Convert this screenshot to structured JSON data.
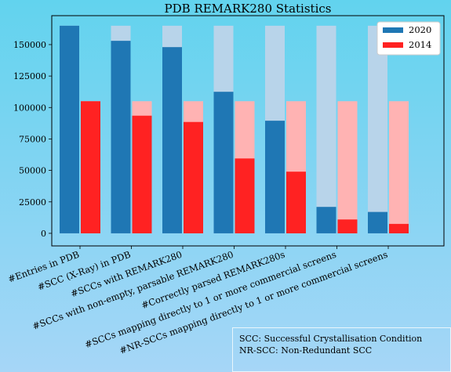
{
  "chart_data": {
    "type": "bar",
    "title": "PDB REMARK280 Statistics",
    "categories": [
      "#Entries in PDB",
      "#SCC (X-Ray) in PDB",
      "#SCCs with REMARK280",
      "#SCCs with non-empty, parsable REMARK280",
      "#Correctly parsed REMARK280s",
      "#SCCs mapping directly to 1 or more commercial screens",
      "#NR-SCCs mapping directly to 1 or more commercial screens"
    ],
    "series": [
      {
        "name": "2020",
        "color": "#1f77b4",
        "background_color": "#b8d4ea",
        "total": 165000,
        "values": [
          165000,
          153000,
          148000,
          112500,
          89500,
          21000,
          17000
        ]
      },
      {
        "name": "2014",
        "color": "#ff2222",
        "background_color": "#ffb3b3",
        "total": 105000,
        "values": [
          105000,
          93500,
          88500,
          59500,
          49000,
          11000,
          7500
        ]
      }
    ],
    "ylim": [
      -10000,
      173000
    ],
    "yticks": [
      0,
      25000,
      50000,
      75000,
      100000,
      125000,
      150000
    ],
    "ytick_labels": [
      "0",
      "25000",
      "50000",
      "75000",
      "100000",
      "125000",
      "150000"
    ],
    "legend_position": "top-right",
    "grid": false
  },
  "notes": {
    "line1": "SCC: Successful Crystallisation Condition",
    "line2": "NR-SCC: Non-Redundant SCC"
  },
  "background": {
    "top": "#62d3ee",
    "bottom": "#a6d6f7"
  }
}
